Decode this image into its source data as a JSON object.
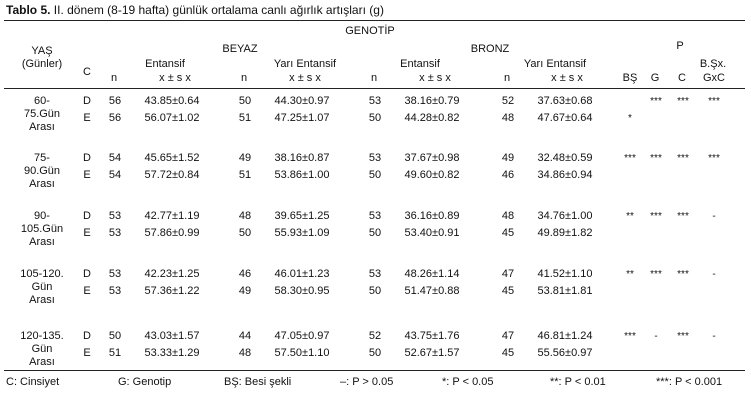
{
  "caption": {
    "label": "Tablo 5.",
    "text": " II. dönem (8-19 hafta) günlük ortalama canlı ağırlık artışları (g)"
  },
  "header": {
    "genotip": "GENOTİP",
    "p": "P",
    "yas": "YAŞ",
    "gunler": "(Günler)",
    "c": "C",
    "beyaz": "BEYAZ",
    "bronz": "BRONZ",
    "entansif": "Entansif",
    "yari_entansif": "Yarı Entansif",
    "n": "n",
    "mean_sd": "x ± s x",
    "bs": "BŞ",
    "g": "G",
    "cc": "C",
    "bsxgxc_1": "B.Şx.",
    "bsxgxc_2": "GxC"
  },
  "rows": [
    {
      "age": [
        "60-",
        "75.Gün",
        "Arası"
      ],
      "d": {
        "c": "D",
        "be_n": "56",
        "be_v": "43.85±0.64",
        "bye_n": "50",
        "bye_v": "44.30±0.97",
        "re_n": "53",
        "re_v": "38.16±0.79",
        "rye_n": "52",
        "rye_v": "37.63±0.68",
        "bs": "",
        "g": "***",
        "cc": "***",
        "x": "***"
      },
      "e": {
        "c": "E",
        "be_n": "56",
        "be_v": "56.07±1.02",
        "bye_n": "51",
        "bye_v": "47.25±1.07",
        "re_n": "50",
        "re_v": "44.28±0.82",
        "rye_n": "48",
        "rye_v": "47.67±0.64",
        "bs": "*",
        "g": "",
        "cc": "",
        "x": ""
      }
    },
    {
      "age": [
        "75-",
        "90.Gün",
        "Arası"
      ],
      "d": {
        "c": "D",
        "be_n": "54",
        "be_v": "45.65±1.52",
        "bye_n": "49",
        "bye_v": "38.16±0.87",
        "re_n": "53",
        "re_v": "37.67±0.98",
        "rye_n": "49",
        "rye_v": "32.48±0.59",
        "bs": "***",
        "g": "***",
        "cc": "***",
        "x": "***"
      },
      "e": {
        "c": "E",
        "be_n": "54",
        "be_v": "57.72±0.84",
        "bye_n": "51",
        "bye_v": "53.86±1.00",
        "re_n": "50",
        "re_v": "49.60±0.82",
        "rye_n": "46",
        "rye_v": "34.86±0.94",
        "bs": "",
        "g": "",
        "cc": "",
        "x": ""
      }
    },
    {
      "age": [
        "90-",
        "105.Gün",
        "Arası"
      ],
      "d": {
        "c": "D",
        "be_n": "53",
        "be_v": "42.77±1.19",
        "bye_n": "48",
        "bye_v": "39.65±1.25",
        "re_n": "53",
        "re_v": "36.16±0.89",
        "rye_n": "48",
        "rye_v": "34.76±1.00",
        "bs": "**",
        "g": "***",
        "cc": "***",
        "x": "-"
      },
      "e": {
        "c": "E",
        "be_n": "53",
        "be_v": "57.86±0.99",
        "bye_n": "50",
        "bye_v": "55.93±1.09",
        "re_n": "50",
        "re_v": "53.40±0.91",
        "rye_n": "45",
        "rye_v": "49.89±1.82",
        "bs": "",
        "g": "",
        "cc": "",
        "x": ""
      }
    },
    {
      "age": [
        "105-120.",
        "Gün",
        "Arası"
      ],
      "d": {
        "c": "D",
        "be_n": "53",
        "be_v": "42.23±1.25",
        "bye_n": "46",
        "bye_v": "46.01±1.23",
        "re_n": "53",
        "re_v": "48.26±1.14",
        "rye_n": "47",
        "rye_v": "41.52±1.10",
        "bs": "**",
        "g": "***",
        "cc": "***",
        "x": "-"
      },
      "e": {
        "c": "E",
        "be_n": "53",
        "be_v": "57.36±1.22",
        "bye_n": "49",
        "bye_v": "58.30±0.95",
        "re_n": "50",
        "re_v": "51.47±0.88",
        "rye_n": "45",
        "rye_v": "53.81±1.81",
        "bs": "",
        "g": "",
        "cc": "",
        "x": ""
      }
    },
    {
      "age": [
        "120-135.",
        "Gün",
        "Arası"
      ],
      "d": {
        "c": "D",
        "be_n": "50",
        "be_v": "43.03±1.57",
        "bye_n": "44",
        "bye_v": "47.05±0.97",
        "re_n": "52",
        "re_v": "43.75±1.76",
        "rye_n": "47",
        "rye_v": "46.81±1.24",
        "bs": "***",
        "g": "-",
        "cc": "***",
        "x": "-"
      },
      "e": {
        "c": "E",
        "be_n": "51",
        "be_v": "53.33±1.29",
        "bye_n": "48",
        "bye_v": "57.50±1.10",
        "re_n": "50",
        "re_v": "52.67±1.57",
        "rye_n": "45",
        "rye_v": "55.56±0.97",
        "bs": "",
        "g": "",
        "cc": "",
        "x": ""
      }
    }
  ],
  "footer": {
    "c": "C: Cinsiyet",
    "g": "G: Genotip",
    "bs": "BŞ: Besi şekli",
    "ns": "–: P > 0.05",
    "p05": "*: P < 0.05",
    "p01": "**: P < 0.01",
    "p001": "***: P < 0.001"
  }
}
